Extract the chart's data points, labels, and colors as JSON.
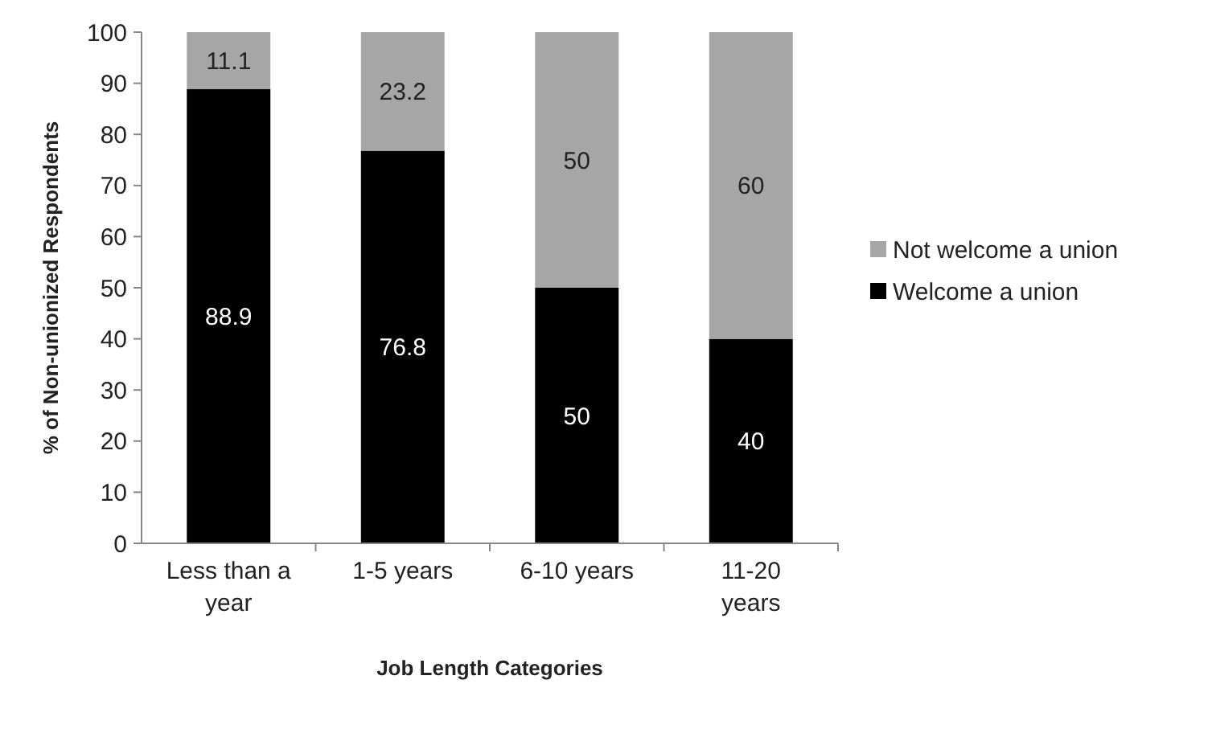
{
  "chart_data": {
    "type": "bar",
    "stacked": true,
    "xlabel": "Job Length Categories",
    "ylabel": "% of Non-unionized Respondents",
    "categories": [
      "Less than a year",
      "1-5 years",
      "6-10 years",
      "11-20 years"
    ],
    "series": [
      {
        "name": "Welcome a union",
        "color": "#000000",
        "values": [
          88.9,
          76.8,
          50,
          40
        ]
      },
      {
        "name": "Not welcome a union",
        "color": "#a6a6a6",
        "values": [
          11.1,
          23.2,
          50,
          60
        ]
      }
    ],
    "ylim": [
      0,
      100
    ],
    "yticks": [
      0,
      10,
      20,
      30,
      40,
      50,
      60,
      70,
      80,
      90,
      100
    ],
    "data_labels": true,
    "legend": "right",
    "grid": false
  }
}
